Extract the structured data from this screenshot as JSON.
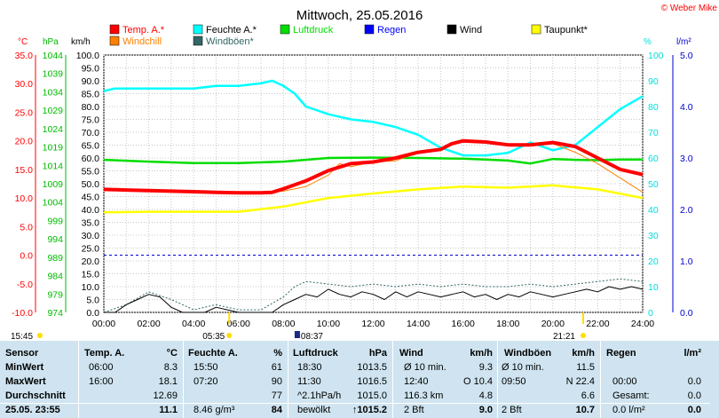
{
  "header": {
    "title": "Mittwoch, 25.05.2016",
    "credit": "© Weber Mike"
  },
  "legend": [
    {
      "label": "Temp. A.*",
      "color": "#ff0000"
    },
    {
      "label": "Feuchte A.*",
      "color": "#00ffff"
    },
    {
      "label": "Luftdruck",
      "color": "#00dd00"
    },
    {
      "label": "Regen",
      "color": "#0000ff"
    },
    {
      "label": "Wind",
      "color": "#000000"
    },
    {
      "label": "Taupunkt*",
      "color": "#ffff00"
    },
    {
      "label": "Windchill",
      "color": "#ff8000"
    },
    {
      "label": "Windböen*",
      "color": "#336666"
    }
  ],
  "axis_units": {
    "temp": "°C",
    "press": "hPa",
    "wind": "km/h",
    "hum": "%",
    "rain": "l/m²"
  },
  "axis_ticks": {
    "temp": [
      "35.0",
      "30.0",
      "25.0",
      "20.0",
      "15.0",
      "10.0",
      "5.0",
      "0.0",
      "-5.0",
      "-10.0"
    ],
    "press": [
      "1044",
      "1039",
      "1034",
      "1029",
      "1024",
      "1019",
      "1014",
      "1009",
      "1004",
      "999",
      "994",
      "989",
      "984",
      "979",
      "974"
    ],
    "wind": [
      "100.0",
      "95.0",
      "90.0",
      "85.0",
      "80.0",
      "75.0",
      "70.0",
      "65.0",
      "60.0",
      "55.0",
      "50.0",
      "45.0",
      "40.0",
      "35.0",
      "30.0",
      "25.0",
      "20.0",
      "15.0",
      "10.0",
      "5.0",
      "0.0"
    ],
    "hum": [
      "100",
      "90",
      "80",
      "70",
      "60",
      "50",
      "40",
      "30",
      "20",
      "10",
      "0"
    ],
    "rain": [
      "5.0",
      "4.0",
      "3.0",
      "2.0",
      "1.0",
      "0.0"
    ],
    "time": [
      "00:00",
      "02:00",
      "04:00",
      "06:00",
      "08:00",
      "10:00",
      "12:00",
      "14:00",
      "16:00",
      "18:00",
      "20:00",
      "22:00",
      "24:00"
    ]
  },
  "sun": {
    "left_time": "15:45",
    "sunrise": "05:35",
    "moon": "08:37",
    "sunset": "21:21"
  },
  "chart_data": {
    "type": "line",
    "title": "Mittwoch, 25.05.2016",
    "x_unit": "hours",
    "xlim": [
      0,
      24
    ],
    "series": [
      {
        "name": "Temp. A.*",
        "axis": "temp",
        "ylim": [
          -10,
          35
        ],
        "color": "#ff0000",
        "x": [
          0,
          1,
          2,
          3,
          4,
          5,
          6,
          7,
          7.5,
          8,
          9,
          10,
          11,
          12,
          13,
          14,
          15,
          15.5,
          16,
          17,
          18,
          19,
          20,
          21,
          22,
          23,
          24
        ],
        "y": [
          11.5,
          11.4,
          11.3,
          11.2,
          11.1,
          11.0,
          10.9,
          10.9,
          11.0,
          11.6,
          13.0,
          14.8,
          16.0,
          16.3,
          17.0,
          18.0,
          18.5,
          19.5,
          20.0,
          19.8,
          19.3,
          19.3,
          19.7,
          19.0,
          17.0,
          15.0,
          14.1
        ]
      },
      {
        "name": "Feuchte A.*",
        "axis": "hum",
        "ylim": [
          0,
          100
        ],
        "color": "#00ffff",
        "x": [
          0,
          0.5,
          1,
          2,
          3,
          4,
          5,
          6,
          7,
          7.5,
          8,
          8.5,
          9,
          10,
          11,
          12,
          13,
          14,
          15,
          16,
          17,
          18,
          19,
          20,
          21,
          22,
          23,
          24
        ],
        "y": [
          86,
          87,
          87,
          87,
          87,
          87,
          88,
          88,
          89,
          90,
          88,
          85,
          80,
          77,
          75,
          74,
          72,
          69,
          64,
          61,
          61,
          62,
          66,
          63,
          65,
          72,
          79,
          84
        ]
      },
      {
        "name": "Luftdruck",
        "axis": "press",
        "ylim": [
          974,
          1044
        ],
        "color": "#00dd00",
        "x": [
          0,
          2,
          4,
          6,
          8,
          10,
          12,
          14,
          16,
          18,
          19,
          20,
          21,
          22,
          23,
          24
        ],
        "y": [
          1015.5,
          1015.0,
          1014.6,
          1014.6,
          1015.0,
          1016.0,
          1016.1,
          1016.0,
          1015.8,
          1015.3,
          1014.5,
          1015.7,
          1015.5,
          1015.4,
          1015.6,
          1015.6
        ]
      },
      {
        "name": "Taupunkt*",
        "axis": "temp",
        "ylim": [
          -10,
          35
        ],
        "color": "#ffff00",
        "x": [
          0,
          2,
          4,
          6,
          8,
          10,
          12,
          14,
          16,
          18,
          20,
          22,
          24
        ],
        "y": [
          7.5,
          7.6,
          7.6,
          7.6,
          8.5,
          10.0,
          10.8,
          11.5,
          12.0,
          11.8,
          12.2,
          11.5,
          10.0
        ]
      },
      {
        "name": "Windchill",
        "axis": "temp",
        "ylim": [
          -10,
          35
        ],
        "color": "#ff8000",
        "x": [
          0,
          2,
          4,
          6,
          8,
          9,
          10,
          10.5,
          11,
          12,
          13,
          14,
          15,
          16,
          18,
          20,
          21,
          22,
          23,
          24
        ],
        "y": [
          11.5,
          11.3,
          11.1,
          10.9,
          11.2,
          12.0,
          14.0,
          16.0,
          15.5,
          16.3,
          16.5,
          18.0,
          18.5,
          20.0,
          19.3,
          19.5,
          18.0,
          16.0,
          13.5,
          11.0
        ]
      },
      {
        "name": "Wind",
        "axis": "wind",
        "ylim": [
          0,
          100
        ],
        "color": "#000000",
        "x": [
          0,
          0.5,
          1,
          1.5,
          2,
          2.5,
          3,
          3.5,
          4,
          4.5,
          5,
          5.5,
          6,
          6.5,
          7,
          7.5,
          8,
          8.5,
          9,
          9.5,
          10,
          10.5,
          11,
          11.5,
          12,
          12.5,
          13,
          13.5,
          14,
          14.5,
          15,
          15.5,
          16,
          16.5,
          17,
          17.5,
          18,
          18.5,
          19,
          19.5,
          20,
          20.5,
          21,
          21.5,
          22,
          22.5,
          23,
          23.5,
          24
        ],
        "y": [
          0,
          0,
          3,
          5,
          7,
          6,
          2,
          0,
          0,
          0,
          2,
          1,
          0,
          0,
          0,
          0,
          3,
          5,
          7,
          6,
          9,
          7,
          6,
          8,
          7,
          5,
          8,
          6,
          8,
          7,
          6,
          7,
          8,
          6,
          7,
          5,
          7,
          6,
          8,
          7,
          6,
          7,
          8,
          9,
          8,
          10,
          9,
          10,
          9
        ]
      },
      {
        "name": "Windböen*",
        "axis": "wind",
        "ylim": [
          0,
          100
        ],
        "color": "#336666",
        "x": [
          0,
          1,
          2,
          3,
          4,
          5,
          6,
          7,
          8,
          8.5,
          9,
          10,
          11,
          12,
          13,
          14,
          15,
          16,
          17,
          18,
          19,
          20,
          21,
          22,
          23,
          24
        ],
        "y": [
          0,
          3,
          8,
          5,
          1,
          3,
          1,
          1,
          6,
          10,
          12,
          11,
          10,
          11,
          10,
          11,
          10,
          11,
          10,
          10,
          11,
          10,
          11,
          12,
          13,
          12
        ]
      }
    ]
  },
  "table": {
    "headers": [
      "Sensor",
      "Temp. A.",
      "°C",
      "Feuchte A.",
      "%",
      "Luftdruck",
      "hPa",
      "Wind",
      "km/h",
      "Windböen",
      "km/h",
      "Regen",
      "l/m²"
    ],
    "rows": [
      {
        "label": "MinWert",
        "cells": [
          "06:00",
          "8.3",
          "15:50",
          "61",
          "18:30",
          "1013.5",
          "Ø 10 min.",
          "9.3",
          "Ø 10 min.",
          "11.5",
          "",
          ""
        ]
      },
      {
        "label": "MaxWert",
        "cells": [
          "16:00",
          "18.1",
          "07:20",
          "90",
          "11:30",
          "1016.5",
          "12:40",
          "O 10.4",
          "09:50",
          "N 22.4",
          "00:00",
          "0.0"
        ]
      },
      {
        "label": "Durchschnitt",
        "cells": [
          "",
          "12.69",
          "",
          "77",
          "^2.1hPa/h",
          "1015.0",
          "116.3 km",
          "4.8",
          "",
          "6.6",
          "Gesamt:",
          "0.0"
        ]
      },
      {
        "label": "25.05. 23:55",
        "cells": [
          "",
          "11.1",
          "8.46 g/m³",
          "84",
          "bewölkt",
          "↑1015.2",
          "2 Bft",
          "9.0",
          "2 Bft",
          "10.7",
          "0.0 l/m²",
          "0.0"
        ]
      }
    ]
  }
}
